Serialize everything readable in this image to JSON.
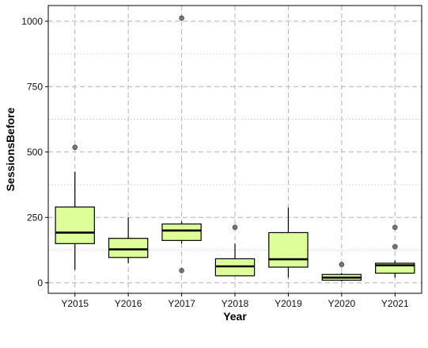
{
  "chart_data": {
    "type": "boxplot",
    "xlabel": "Year",
    "ylabel": "SessionsBefore",
    "ylim": [
      -40,
      1060
    ],
    "yticks": [
      0,
      250,
      500,
      750,
      1000
    ],
    "grid": "dashed major, dotted minor",
    "box_fill": "#ddff99",
    "box_stroke": "#000000",
    "outlier_color": "#555555",
    "categories": [
      "Y2015",
      "Y2016",
      "Y2017",
      "Y2018",
      "Y2019",
      "Y2020",
      "Y2021"
    ],
    "boxes": [
      {
        "category": "Y2015",
        "whisker_low": 50,
        "q1": 150,
        "median": 192,
        "q3": 290,
        "whisker_high": 425,
        "outliers": [
          518
        ]
      },
      {
        "category": "Y2016",
        "whisker_low": 75,
        "q1": 97,
        "median": 128,
        "q3": 170,
        "whisker_high": 250,
        "outliers": []
      },
      {
        "category": "Y2017",
        "whisker_low": 150,
        "q1": 162,
        "median": 200,
        "q3": 225,
        "whisker_high": 235,
        "outliers": [
          47,
          1012
        ]
      },
      {
        "category": "Y2018",
        "whisker_low": 25,
        "q1": 27,
        "median": 63,
        "q3": 92,
        "whisker_high": 150,
        "outliers": [
          212
        ]
      },
      {
        "category": "Y2019",
        "whisker_low": 20,
        "q1": 60,
        "median": 90,
        "q3": 192,
        "whisker_high": 288,
        "outliers": []
      },
      {
        "category": "Y2020",
        "whisker_low": 5,
        "q1": 10,
        "median": 20,
        "q3": 32,
        "whisker_high": 38,
        "outliers": [
          70
        ]
      },
      {
        "category": "Y2021",
        "whisker_low": 20,
        "q1": 37,
        "median": 67,
        "q3": 75,
        "whisker_high": 85,
        "outliers": [
          138,
          212
        ]
      }
    ]
  }
}
